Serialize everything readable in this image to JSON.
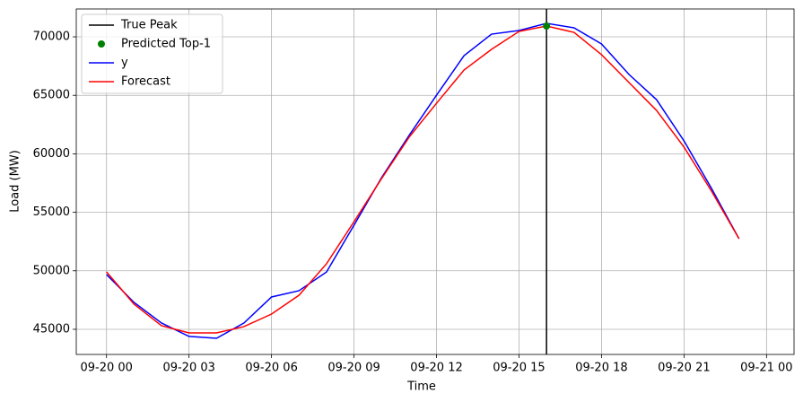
{
  "chart_data": {
    "type": "line",
    "x_label": "Time",
    "y_label": "Load (MW)",
    "x": [
      0,
      1,
      2,
      3,
      4,
      5,
      6,
      7,
      8,
      9,
      10,
      11,
      12,
      13,
      14,
      15,
      16,
      17,
      18,
      19,
      20,
      21,
      22,
      23
    ],
    "series": [
      {
        "name": "y",
        "color": "blue",
        "values": [
          49680,
          47300,
          45540,
          44390,
          44230,
          45540,
          47760,
          48300,
          49900,
          53900,
          57960,
          61560,
          65010,
          68390,
          70230,
          70540,
          71150,
          70770,
          69390,
          66780,
          64630,
          61100,
          57040,
          52740
        ]
      },
      {
        "name": "Forecast",
        "color": "red",
        "values": [
          49910,
          47150,
          45310,
          44690,
          44690,
          45230,
          46300,
          47910,
          50600,
          54200,
          57880,
          61410,
          64320,
          67160,
          68930,
          70460,
          70920,
          70380,
          68470,
          66090,
          63710,
          60570,
          56810,
          52740
        ]
      }
    ],
    "true_peak": {
      "name": "True Peak",
      "color": "black",
      "x": 16
    },
    "predicted_top1": {
      "name": "Predicted Top-1",
      "color": "green",
      "x": 16,
      "y": 70920
    },
    "xlim": [
      -1.1,
      25
    ],
    "xticks": [
      {
        "value": 0,
        "label": "09-20 00"
      },
      {
        "value": 3,
        "label": "09-20 03"
      },
      {
        "value": 6,
        "label": "09-20 06"
      },
      {
        "value": 9,
        "label": "09-20 09"
      },
      {
        "value": 12,
        "label": "09-20 12"
      },
      {
        "value": 15,
        "label": "09-20 15"
      },
      {
        "value": 18,
        "label": "09-20 18"
      },
      {
        "value": 21,
        "label": "09-20 21"
      },
      {
        "value": 24,
        "label": "09-21 00"
      }
    ],
    "ylim": [
      42850,
      72380
    ],
    "yticks": [
      45000,
      50000,
      55000,
      60000,
      65000,
      70000
    ],
    "grid": true,
    "legend": "upper left"
  }
}
